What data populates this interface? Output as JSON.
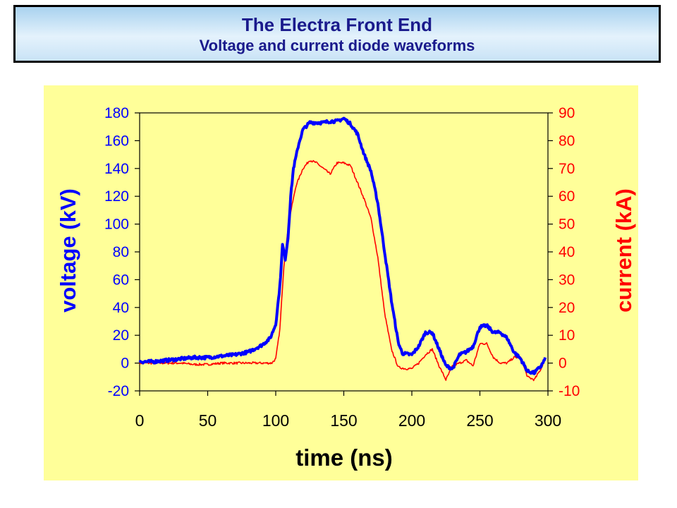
{
  "header": {
    "title": "The Electra Front End",
    "subtitle": "Voltage and current diode waveforms"
  },
  "colors": {
    "panel_background": "#ffff99",
    "voltage": "#0000ff",
    "current": "#ff0000",
    "title_text": "#1a1a8c"
  },
  "chart_data": {
    "type": "line",
    "xlabel": "time (ns)",
    "ylabel": "voltage (kV)",
    "y2label": "current (kA)",
    "xlim": [
      0,
      300
    ],
    "ylim": [
      -20,
      180
    ],
    "y2lim": [
      -10,
      90
    ],
    "x_ticks": [
      "0",
      "50",
      "100",
      "150",
      "200",
      "250",
      "300"
    ],
    "y_ticks": [
      "-20",
      "0",
      "20",
      "40",
      "60",
      "80",
      "100",
      "120",
      "140",
      "160",
      "180"
    ],
    "y2_ticks": [
      "-10",
      "0",
      "10",
      "20",
      "30",
      "40",
      "50",
      "60",
      "70",
      "80",
      "90"
    ],
    "grid": false,
    "legend": "none",
    "series": [
      {
        "axis": "left",
        "color": "#0000ff",
        "points": [
          [
            0,
            1
          ],
          [
            10,
            1
          ],
          [
            20,
            2
          ],
          [
            30,
            3
          ],
          [
            40,
            4
          ],
          [
            50,
            4
          ],
          [
            60,
            5
          ],
          [
            70,
            6
          ],
          [
            80,
            8
          ],
          [
            90,
            13
          ],
          [
            96,
            18
          ],
          [
            100,
            28
          ],
          [
            103,
            55
          ],
          [
            105,
            85
          ],
          [
            107,
            75
          ],
          [
            109,
            90
          ],
          [
            111,
            120
          ],
          [
            113,
            140
          ],
          [
            117,
            158
          ],
          [
            120,
            168
          ],
          [
            125,
            173
          ],
          [
            130,
            173
          ],
          [
            135,
            173
          ],
          [
            140,
            174
          ],
          [
            145,
            174
          ],
          [
            150,
            176
          ],
          [
            155,
            172
          ],
          [
            160,
            165
          ],
          [
            165,
            150
          ],
          [
            170,
            138
          ],
          [
            175,
            115
          ],
          [
            180,
            80
          ],
          [
            185,
            45
          ],
          [
            190,
            15
          ],
          [
            193,
            7
          ],
          [
            200,
            6
          ],
          [
            205,
            12
          ],
          [
            210,
            22
          ],
          [
            215,
            22
          ],
          [
            220,
            10
          ],
          [
            225,
            -2
          ],
          [
            230,
            -4
          ],
          [
            235,
            6
          ],
          [
            240,
            8
          ],
          [
            245,
            12
          ],
          [
            250,
            26
          ],
          [
            255,
            27
          ],
          [
            260,
            22
          ],
          [
            265,
            22
          ],
          [
            270,
            18
          ],
          [
            275,
            8
          ],
          [
            280,
            3
          ],
          [
            285,
            -6
          ],
          [
            290,
            -7
          ],
          [
            295,
            -2
          ],
          [
            298,
            3
          ]
        ]
      },
      {
        "axis": "right",
        "color": "#ff0000",
        "points": [
          [
            0,
            0
          ],
          [
            10,
            0
          ],
          [
            20,
            0
          ],
          [
            30,
            0
          ],
          [
            40,
            -0.5
          ],
          [
            50,
            -0.5
          ],
          [
            60,
            0
          ],
          [
            70,
            0
          ],
          [
            80,
            0
          ],
          [
            90,
            0
          ],
          [
            97,
            0
          ],
          [
            100,
            1.5
          ],
          [
            103,
            12
          ],
          [
            106,
            35
          ],
          [
            110,
            52
          ],
          [
            115,
            64
          ],
          [
            120,
            70
          ],
          [
            125,
            73
          ],
          [
            130,
            72
          ],
          [
            135,
            70
          ],
          [
            140,
            68
          ],
          [
            145,
            72
          ],
          [
            150,
            72
          ],
          [
            155,
            71
          ],
          [
            160,
            65
          ],
          [
            165,
            59
          ],
          [
            170,
            52
          ],
          [
            175,
            38
          ],
          [
            180,
            18
          ],
          [
            185,
            5
          ],
          [
            190,
            -1.5
          ],
          [
            195,
            -2
          ],
          [
            200,
            -2
          ],
          [
            205,
            0
          ],
          [
            210,
            3
          ],
          [
            215,
            5
          ],
          [
            220,
            -1
          ],
          [
            225,
            -6
          ],
          [
            230,
            -1
          ],
          [
            235,
            0
          ],
          [
            240,
            1
          ],
          [
            245,
            -1
          ],
          [
            250,
            7
          ],
          [
            255,
            7
          ],
          [
            260,
            2
          ],
          [
            265,
            0
          ],
          [
            270,
            0
          ],
          [
            275,
            2
          ],
          [
            280,
            2
          ],
          [
            285,
            -5
          ],
          [
            290,
            -6
          ],
          [
            295,
            -2
          ],
          [
            298,
            2
          ]
        ]
      }
    ]
  }
}
